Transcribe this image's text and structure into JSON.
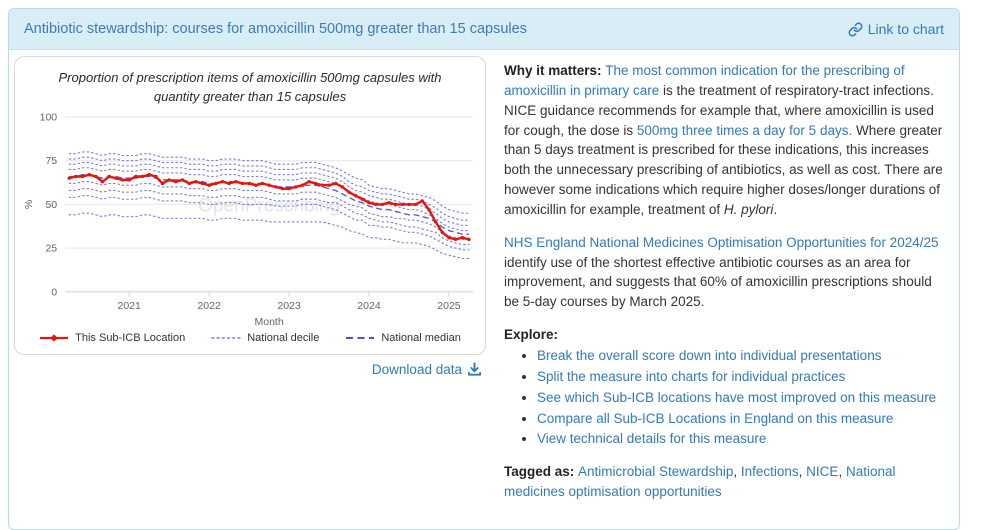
{
  "header": {
    "title": "Antibiotic stewardship: courses for amoxicillin 500mg greater than 15 capsules",
    "link_to_chart": "Link to chart"
  },
  "chart_card": {
    "download_label": "Download data"
  },
  "chart_data": {
    "type": "line",
    "title": "Proportion of prescription items of amoxicillin 500mg capsules with quantity greater than 15 capsules",
    "xlabel": "Month",
    "ylabel": "%",
    "ylim": [
      0,
      100
    ],
    "yticks": [
      0,
      25,
      50,
      75,
      100
    ],
    "x_tick_labels": [
      "2021",
      "2022",
      "2023",
      "2024",
      "2025"
    ],
    "grid": true,
    "legend_position": "bottom",
    "legend": [
      "This Sub-ICB Location",
      "National decile",
      "National median"
    ],
    "watermark": "OpenPrescribing",
    "x": [
      "2020-04",
      "2020-05",
      "2020-06",
      "2020-07",
      "2020-08",
      "2020-09",
      "2020-10",
      "2020-11",
      "2020-12",
      "2021-01",
      "2021-02",
      "2021-03",
      "2021-04",
      "2021-05",
      "2021-06",
      "2021-07",
      "2021-08",
      "2021-09",
      "2021-10",
      "2021-11",
      "2021-12",
      "2022-01",
      "2022-02",
      "2022-03",
      "2022-04",
      "2022-05",
      "2022-06",
      "2022-07",
      "2022-08",
      "2022-09",
      "2022-10",
      "2022-11",
      "2022-12",
      "2023-01",
      "2023-02",
      "2023-03",
      "2023-04",
      "2023-05",
      "2023-06",
      "2023-07",
      "2023-08",
      "2023-09",
      "2023-10",
      "2023-11",
      "2023-12",
      "2024-01",
      "2024-02",
      "2024-03",
      "2024-04",
      "2024-05",
      "2024-06",
      "2024-07",
      "2024-08",
      "2024-09",
      "2024-10",
      "2024-11",
      "2024-12",
      "2025-01",
      "2025-02",
      "2025-03",
      "2025-04"
    ],
    "series": [
      {
        "name": "This Sub-ICB Location",
        "role": "subicb",
        "color": "#e3170d",
        "values": [
          65,
          66,
          66,
          67,
          66,
          63,
          66,
          65,
          64,
          64,
          66,
          66,
          67,
          66,
          62,
          64,
          63,
          64,
          62,
          63,
          62,
          61,
          62,
          63,
          62,
          63,
          62,
          62,
          61,
          62,
          61,
          60,
          59,
          59,
          60,
          61,
          63,
          62,
          61,
          61,
          62,
          60,
          57,
          55,
          53,
          51,
          50,
          50,
          51,
          50,
          50,
          50,
          50,
          52,
          47,
          40,
          34,
          31,
          30,
          31,
          30
        ]
      },
      {
        "name": "National median",
        "role": "median",
        "color": "#5151cf",
        "values": [
          66,
          66,
          67,
          67,
          66,
          65,
          66,
          66,
          65,
          65,
          65,
          66,
          66,
          65,
          64,
          64,
          64,
          64,
          63,
          63,
          63,
          62,
          62,
          63,
          63,
          63,
          62,
          62,
          62,
          62,
          61,
          60,
          60,
          60,
          60,
          61,
          61,
          61,
          60,
          59,
          58,
          56,
          54,
          52,
          51,
          49,
          48,
          47,
          47,
          46,
          45,
          44,
          44,
          43,
          42,
          40,
          37,
          35,
          34,
          33,
          33
        ]
      },
      {
        "name": "National decile",
        "role": "decile",
        "percentile": 90,
        "color": "#7b7bdc",
        "values": [
          79,
          79,
          80,
          80,
          79,
          78,
          79,
          79,
          78,
          78,
          78,
          79,
          79,
          78,
          77,
          77,
          77,
          77,
          76,
          76,
          76,
          75,
          75,
          76,
          76,
          76,
          75,
          75,
          75,
          75,
          74,
          73,
          73,
          73,
          73,
          74,
          74,
          74,
          73,
          72,
          71,
          69,
          67,
          65,
          64,
          61,
          60,
          59,
          59,
          58,
          57,
          56,
          56,
          55,
          54,
          52,
          49,
          47,
          46,
          45,
          45
        ]
      },
      {
        "name": "National decile",
        "role": "decile",
        "percentile": 80,
        "color": "#7b7bdc",
        "values": [
          76,
          76,
          77,
          77,
          76,
          75,
          76,
          76,
          75,
          75,
          75,
          76,
          76,
          75,
          74,
          74,
          74,
          74,
          73,
          73,
          73,
          72,
          72,
          73,
          73,
          73,
          72,
          72,
          72,
          72,
          71,
          70,
          70,
          70,
          70,
          71,
          71,
          71,
          70,
          69,
          68,
          66,
          63,
          61,
          60,
          58,
          57,
          56,
          56,
          55,
          54,
          53,
          53,
          52,
          50,
          48,
          45,
          43,
          42,
          41,
          41
        ]
      },
      {
        "name": "National decile",
        "role": "decile",
        "percentile": 70,
        "color": "#7b7bdc",
        "values": [
          73,
          73,
          74,
          74,
          73,
          72,
          73,
          73,
          72,
          72,
          72,
          73,
          73,
          72,
          71,
          71,
          71,
          71,
          70,
          70,
          70,
          69,
          69,
          70,
          70,
          70,
          69,
          69,
          69,
          69,
          68,
          67,
          67,
          67,
          67,
          68,
          68,
          68,
          67,
          66,
          65,
          63,
          60,
          58,
          57,
          55,
          54,
          53,
          53,
          52,
          51,
          50,
          50,
          49,
          47,
          45,
          42,
          40,
          39,
          38,
          38
        ]
      },
      {
        "name": "National decile",
        "role": "decile",
        "percentile": 60,
        "color": "#7b7bdc",
        "values": [
          70,
          70,
          71,
          71,
          70,
          69,
          70,
          70,
          69,
          69,
          69,
          70,
          70,
          69,
          68,
          68,
          68,
          68,
          67,
          67,
          67,
          66,
          66,
          67,
          67,
          67,
          66,
          66,
          66,
          66,
          65,
          64,
          64,
          64,
          64,
          65,
          65,
          65,
          64,
          63,
          62,
          60,
          57,
          55,
          54,
          52,
          51,
          50,
          50,
          49,
          48,
          47,
          47,
          46,
          44,
          42,
          39,
          37,
          36,
          35,
          35
        ]
      },
      {
        "name": "National decile",
        "role": "decile",
        "percentile": 40,
        "color": "#7b7bdc",
        "values": [
          62,
          62,
          63,
          63,
          62,
          61,
          62,
          62,
          61,
          61,
          61,
          62,
          62,
          61,
          60,
          60,
          60,
          60,
          59,
          59,
          59,
          58,
          58,
          59,
          59,
          59,
          58,
          58,
          58,
          58,
          57,
          56,
          56,
          56,
          56,
          57,
          57,
          57,
          56,
          55,
          54,
          52,
          50,
          49,
          48,
          45,
          44,
          43,
          43,
          42,
          42,
          41,
          41,
          40,
          39,
          37,
          34,
          32,
          31,
          30,
          30
        ]
      },
      {
        "name": "National decile",
        "role": "decile",
        "percentile": 30,
        "color": "#7b7bdc",
        "values": [
          58,
          58,
          59,
          59,
          58,
          57,
          58,
          58,
          57,
          57,
          57,
          58,
          58,
          57,
          56,
          56,
          56,
          56,
          55,
          55,
          55,
          54,
          54,
          55,
          55,
          55,
          54,
          54,
          54,
          54,
          53,
          52,
          52,
          52,
          52,
          53,
          53,
          53,
          52,
          51,
          51,
          49,
          47,
          45,
          44,
          42,
          41,
          40,
          40,
          39,
          38,
          37,
          37,
          36,
          35,
          34,
          31,
          29,
          28,
          27,
          27
        ]
      },
      {
        "name": "National decile",
        "role": "decile",
        "percentile": 20,
        "color": "#7b7bdc",
        "values": [
          54,
          54,
          55,
          55,
          54,
          53,
          54,
          54,
          53,
          53,
          53,
          54,
          54,
          53,
          52,
          52,
          52,
          52,
          51,
          51,
          51,
          50,
          50,
          51,
          51,
          51,
          50,
          50,
          50,
          50,
          50,
          49,
          49,
          49,
          49,
          50,
          50,
          50,
          49,
          48,
          47,
          45,
          43,
          41,
          41,
          38,
          38,
          37,
          37,
          36,
          35,
          34,
          34,
          33,
          32,
          30,
          28,
          26,
          25,
          24,
          24
        ]
      },
      {
        "name": "National decile",
        "role": "decile",
        "percentile": 10,
        "color": "#7b7bdc",
        "values": [
          44,
          44,
          45,
          45,
          44,
          43,
          44,
          44,
          43,
          43,
          43,
          44,
          44,
          43,
          42,
          42,
          42,
          42,
          42,
          42,
          42,
          41,
          41,
          42,
          42,
          42,
          41,
          41,
          41,
          41,
          40,
          40,
          40,
          40,
          40,
          40,
          40,
          40,
          40,
          39,
          38,
          37,
          35,
          34,
          33,
          31,
          31,
          30,
          30,
          29,
          28,
          28,
          28,
          27,
          26,
          24,
          22,
          21,
          20,
          19,
          19
        ]
      }
    ]
  },
  "why": {
    "label": "Why it matters: ",
    "link1": "The most common indication for the prescribing of amoxicillin in primary care",
    "text1": " is the treatment of respiratory-tract infections. NICE guidance recommends for example that, where amoxicillin is used for cough, the dose is ",
    "link2": "500mg three times a day for 5 days.",
    "text2": " Where greater than 5 days treatment is prescribed for these indications, this increases both the unnecessary prescribing of antibiotics, as well as cost. There are however some indications which require higher doses/longer durations of amoxicillin for example, treatment of ",
    "italic": "H. pylori",
    "tail": "."
  },
  "nhs": {
    "link": "NHS England National Medicines Optimisation Opportunities for 2024/25",
    "text": " identify use of the shortest effective antibiotic courses as an area for improvement, and suggests that 60% of amoxicillin prescriptions should be 5-day courses by March 2025."
  },
  "explore": {
    "label": "Explore:",
    "items": [
      "Break the overall score down into individual presentations",
      "Split the measure into charts for individual practices",
      "See which Sub-ICB locations have most improved on this measure",
      "Compare all Sub-ICB Locations in England on this measure",
      "View technical details for this measure"
    ]
  },
  "tags": {
    "label": "Tagged as: ",
    "items": [
      "Antimicrobial Stewardship",
      "Infections",
      "NICE",
      "National medicines optimisation opportunities"
    ]
  },
  "colors": {
    "panel_border": "#b7dbee",
    "heading_bg": "#d9edf7",
    "heading_text": "#3c7cb8",
    "link": "#337ab7",
    "series_subicb": "#e3170d",
    "series_median": "#5151cf",
    "series_decile": "#7b7bdc",
    "gridline": "#e6e6e6"
  }
}
